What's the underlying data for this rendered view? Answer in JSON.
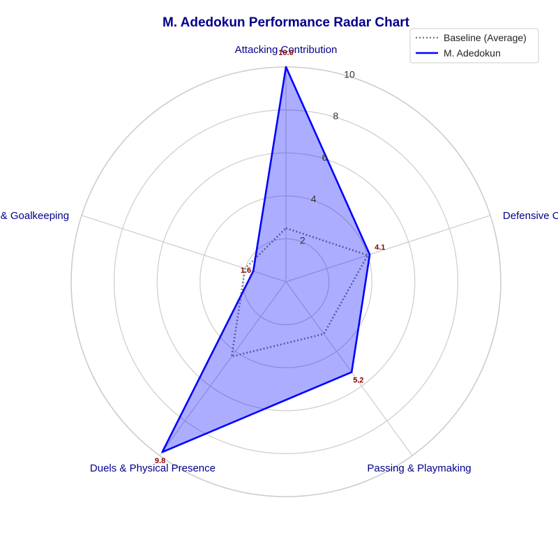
{
  "chart_data": {
    "type": "radar",
    "title": "M. Adedokun Performance Radar Chart",
    "categories": [
      "Attacking Contribution",
      "Defensive Capability",
      "Passing & Playmaking",
      "Duels & Physical Presence",
      "Discipline & Goalkeeping"
    ],
    "rlim": [
      0,
      10
    ],
    "r_ticks": [
      2,
      4,
      6,
      8,
      10
    ],
    "grid": true,
    "legend_position": "top-right",
    "series": [
      {
        "name": "Baseline (Average)",
        "values": [
          2.5,
          4.0,
          3.0,
          4.3,
          2.0
        ],
        "color": "#808080",
        "style": "dotted",
        "fill": false
      },
      {
        "name": "M. Adedokun",
        "values": [
          10.0,
          4.1,
          5.2,
          9.8,
          1.6
        ],
        "color": "#0000ff",
        "style": "solid",
        "fill": true,
        "fill_color": "#0000ff"
      }
    ],
    "data_labels": [
      "10.0",
      "4.1",
      "5.2",
      "9.8",
      "1.6"
    ]
  }
}
